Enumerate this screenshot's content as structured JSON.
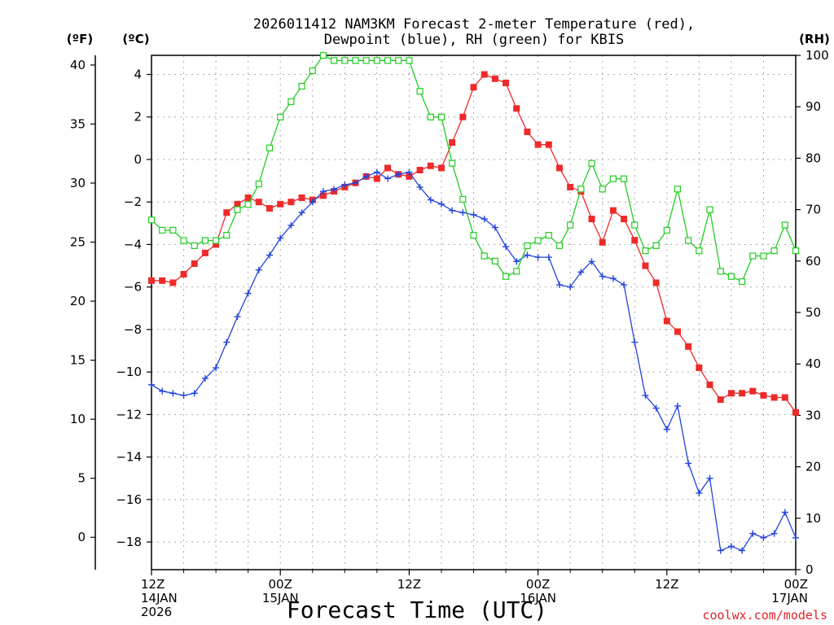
{
  "chart_data": {
    "type": "line",
    "title_line1": "2026011412 NAM3KM Forecast 2-meter Temperature (red),",
    "title_line2": "Dewpoint (blue), RH (green) for KBIS",
    "xlabel": "Forecast Time (UTC)",
    "credit": "coolwx.com/models",
    "unit_labels": {
      "fahrenheit": "(ºF)",
      "celsius": "(ºC)",
      "rh": "(RH)"
    },
    "x_range_hours": [
      0,
      60
    ],
    "y_celsius_range": [
      -19.3,
      4.9
    ],
    "y_rh_range": [
      0,
      100
    ],
    "x_ticks": [
      {
        "hour": 0,
        "time": "12Z",
        "date": "14JAN",
        "year": "2026"
      },
      {
        "hour": 12,
        "time": "00Z",
        "date": "15JAN",
        "year": ""
      },
      {
        "hour": 24,
        "time": "12Z",
        "date": "",
        "year": ""
      },
      {
        "hour": 36,
        "time": "00Z",
        "date": "16JAN",
        "year": ""
      },
      {
        "hour": 48,
        "time": "12Z",
        "date": "",
        "year": ""
      },
      {
        "hour": 60,
        "time": "00Z",
        "date": "17JAN",
        "year": ""
      }
    ],
    "y_ticks_celsius": [
      4,
      2,
      0,
      -2,
      -4,
      -6,
      -8,
      -10,
      -12,
      -14,
      -16,
      -18
    ],
    "y_ticks_fahrenheit": [
      40,
      35,
      30,
      25,
      20,
      15,
      10,
      5,
      0
    ],
    "y_ticks_rh": [
      100,
      90,
      80,
      70,
      60,
      50,
      40,
      30,
      20,
      10,
      0
    ],
    "series": [
      {
        "name": "2-meter Temperature",
        "unit": "°C",
        "color": "#ee2a2a",
        "marker": "filled-square",
        "values": [
          -5.7,
          -5.7,
          -5.8,
          -5.4,
          -4.9,
          -4.4,
          -4.0,
          -2.5,
          -2.1,
          -1.8,
          -2.0,
          -2.3,
          -2.1,
          -2.0,
          -1.8,
          -1.9,
          -1.7,
          -1.5,
          -1.3,
          -1.1,
          -0.8,
          -0.9,
          -0.4,
          -0.7,
          -0.8,
          -0.5,
          -0.3,
          -0.4,
          0.8,
          2.0,
          3.4,
          4.0,
          3.8,
          3.6,
          2.4,
          1.3,
          0.7,
          0.7,
          -0.4,
          -1.3,
          -1.5,
          -2.8,
          -3.9,
          -2.4,
          -2.8,
          -3.8,
          -5.0,
          -5.8,
          -7.6,
          -8.1,
          -8.8,
          -9.8,
          -10.6,
          -11.3,
          -11.0,
          -11.0,
          -10.9,
          -11.1,
          -11.2,
          -11.2,
          -11.9
        ]
      },
      {
        "name": "Dewpoint",
        "unit": "°C",
        "color": "#2244dd",
        "marker": "plus",
        "values": [
          -10.6,
          -10.9,
          -11.0,
          -11.1,
          -11.0,
          -10.3,
          -9.8,
          -8.6,
          -7.4,
          -6.3,
          -5.2,
          -4.5,
          -3.7,
          -3.1,
          -2.5,
          -2.0,
          -1.5,
          -1.4,
          -1.2,
          -1.1,
          -0.8,
          -0.6,
          -0.9,
          -0.7,
          -0.6,
          -1.3,
          -1.9,
          -2.1,
          -2.4,
          -2.5,
          -2.6,
          -2.8,
          -3.2,
          -4.1,
          -4.8,
          -4.5,
          -4.6,
          -4.6,
          -5.9,
          -6.0,
          -5.3,
          -4.8,
          -5.5,
          -5.6,
          -5.9,
          -8.6,
          -11.1,
          -11.7,
          -12.7,
          -11.6,
          -14.3,
          -15.7,
          -15.0,
          -18.4,
          -18.2,
          -18.4,
          -17.6,
          -17.8,
          -17.6,
          -16.6,
          -17.8
        ]
      },
      {
        "name": "RH",
        "unit": "%",
        "color": "#22cc22",
        "marker": "open-square",
        "values": [
          68,
          66,
          66,
          64,
          63,
          64,
          64,
          65,
          70,
          71,
          75,
          82,
          88,
          91,
          94,
          97,
          100,
          99,
          99,
          99,
          99,
          99,
          99,
          99,
          99,
          93,
          88,
          88,
          79,
          72,
          65,
          61,
          60,
          57,
          58,
          63,
          64,
          65,
          63,
          67,
          74,
          79,
          74,
          76,
          76,
          67,
          62,
          63,
          66,
          74,
          64,
          62,
          70,
          58,
          57,
          56,
          61,
          61,
          62,
          67,
          62
        ]
      }
    ]
  }
}
